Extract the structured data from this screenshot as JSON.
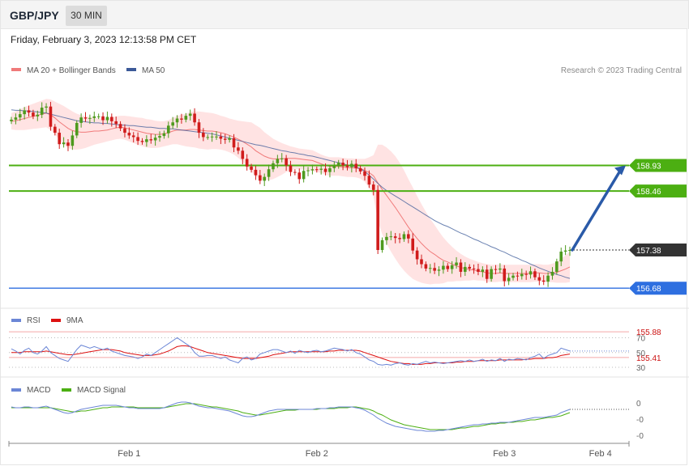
{
  "header": {
    "symbol": "GBP/JPY",
    "timeframe": "30 MIN"
  },
  "timestamp": "Friday, February 3, 2023 12:13:58 PM CET",
  "colors": {
    "bullish": "#4e9a1e",
    "bearish": "#d01c1c",
    "ma20": "#f07a7a",
    "bollinger_fill": "#ffdede",
    "ma50": "#3b5998",
    "resistance": "#4caf12",
    "support": "#2e6fe0",
    "extra_support": "#f4a7a7",
    "price_label": "#333333",
    "rsi": "#6b86d6",
    "rsi_ma": "#dd1111",
    "macd": "#6b86d6",
    "macd_signal": "#4caf12",
    "projection_arrow": "#2a5aa8"
  },
  "chart_data": [
    {
      "type": "candlestick",
      "panel": "price",
      "legend": [
        "MA 20 + Bollinger Bands",
        "MA 50"
      ],
      "copyright": "Research © 2023 Trading Central",
      "x_ticks": [
        "Feb 1",
        "Feb 2",
        "Feb 3",
        "Feb 4"
      ],
      "ylim": [
        154.9,
        160.5
      ],
      "close": [
        159.77,
        159.81,
        159.87,
        159.94,
        159.9,
        159.83,
        159.86,
        159.99,
        160.01,
        159.64,
        159.53,
        159.32,
        159.35,
        159.29,
        159.48,
        159.71,
        159.81,
        159.79,
        159.8,
        159.83,
        159.83,
        159.76,
        159.82,
        159.74,
        159.69,
        159.61,
        159.53,
        159.48,
        159.45,
        159.38,
        159.36,
        159.41,
        159.39,
        159.44,
        159.47,
        159.52,
        159.66,
        159.72,
        159.79,
        159.77,
        159.84,
        159.88,
        159.72,
        159.53,
        159.45,
        159.45,
        159.46,
        159.46,
        159.42,
        159.4,
        159.43,
        159.26,
        159.2,
        159.05,
        158.91,
        158.85,
        158.75,
        158.65,
        158.72,
        158.86,
        158.97,
        159.05,
        159.06,
        158.93,
        158.81,
        158.8,
        158.68,
        158.83,
        158.84,
        158.86,
        158.85,
        158.87,
        158.81,
        158.88,
        158.92,
        158.98,
        158.93,
        158.9,
        158.96,
        158.88,
        158.82,
        158.74,
        158.58,
        158.48,
        157.38,
        157.56,
        157.62,
        157.63,
        157.6,
        157.58,
        157.67,
        157.59,
        157.37,
        157.21,
        157.12,
        157.04,
        157.05,
        157.0,
        157.02,
        157.09,
        157.03,
        157.1,
        157.15,
        156.98,
        157.07,
        157.04,
        157.03,
        156.98,
        157.02,
        156.85,
        157.03,
        157.02,
        157.04,
        156.81,
        156.87,
        156.91,
        156.9,
        156.94,
        156.93,
        156.99,
        156.88,
        156.82,
        156.8,
        156.91,
        156.98,
        157.17,
        157.35,
        157.37,
        157.38
      ],
      "ma20": [
        159.74,
        159.75,
        159.77,
        159.79,
        159.81,
        159.83,
        159.85,
        159.87,
        159.89,
        159.86,
        159.8,
        159.73,
        159.67,
        159.61,
        159.57,
        159.55,
        159.54,
        159.54,
        159.55,
        159.56,
        159.56,
        159.57,
        159.58,
        159.6,
        159.62,
        159.63,
        159.62,
        159.6,
        159.58,
        159.56,
        159.54,
        159.52,
        159.51,
        159.5,
        159.5,
        159.51,
        159.53,
        159.56,
        159.58,
        159.58,
        159.58,
        159.59,
        159.59,
        159.58,
        159.57,
        159.56,
        159.56,
        159.55,
        159.53,
        159.51,
        159.48,
        159.45,
        159.41,
        159.37,
        159.32,
        159.27,
        159.2,
        159.15,
        159.1,
        159.07,
        159.05,
        159.05,
        159.05,
        159.06,
        159.06,
        159.06,
        159.05,
        159.04,
        159.03,
        159.02,
        158.99,
        158.96,
        158.93,
        158.91,
        158.91,
        158.91,
        158.9,
        158.89,
        158.89,
        158.88,
        158.87,
        158.84,
        158.8,
        158.74,
        158.61,
        158.49,
        158.38,
        158.27,
        158.16,
        158.04,
        157.92,
        157.8,
        157.69,
        157.59,
        157.5,
        157.42,
        157.35,
        157.3,
        157.24,
        157.19,
        157.16,
        157.12,
        157.09,
        157.06,
        157.04,
        157.02,
        157.01,
        156.99,
        156.98,
        156.96,
        156.95,
        156.95,
        156.96,
        156.95,
        156.95,
        156.95,
        156.95,
        156.95,
        156.95,
        156.95,
        156.96,
        156.96,
        156.95,
        156.95,
        156.96,
        156.97,
        157.0,
        157.03,
        157.07
      ],
      "ma50": [
        159.95,
        159.94,
        159.94,
        159.93,
        159.93,
        159.92,
        159.91,
        159.9,
        159.89,
        159.87,
        159.85,
        159.83,
        159.81,
        159.79,
        159.77,
        159.75,
        159.74,
        159.73,
        159.72,
        159.71,
        159.71,
        159.7,
        159.7,
        159.69,
        159.68,
        159.67,
        159.67,
        159.66,
        159.66,
        159.65,
        159.64,
        159.63,
        159.63,
        159.62,
        159.61,
        159.61,
        159.6,
        159.6,
        159.59,
        159.58,
        159.57,
        159.56,
        159.55,
        159.54,
        159.53,
        159.52,
        159.51,
        159.49,
        159.47,
        159.45,
        159.43,
        159.41,
        159.39,
        159.37,
        159.35,
        159.33,
        159.31,
        159.3,
        159.28,
        159.26,
        159.24,
        159.22,
        159.2,
        159.19,
        159.17,
        159.16,
        159.14,
        159.13,
        159.11,
        159.1,
        159.08,
        159.06,
        159.04,
        159.02,
        159.0,
        158.98,
        158.96,
        158.94,
        158.92,
        158.9,
        158.87,
        158.82,
        158.75,
        158.68,
        158.6,
        158.53,
        158.47,
        158.42,
        158.37,
        158.32,
        158.27,
        158.22,
        158.17,
        158.12,
        158.07,
        158.02,
        157.97,
        157.92,
        157.88,
        157.84,
        157.81,
        157.77,
        157.73,
        157.69,
        157.66,
        157.62,
        157.58,
        157.55,
        157.51,
        157.48,
        157.44,
        157.41,
        157.37,
        157.34,
        157.3,
        157.26,
        157.23,
        157.19,
        157.16,
        157.12,
        157.09,
        157.05,
        157.02,
        156.99,
        156.96,
        156.93,
        156.91,
        156.88,
        156.86
      ],
      "bb_width": [
        0.15,
        0.17,
        0.19,
        0.21,
        0.22,
        0.23,
        0.24,
        0.25,
        0.26,
        0.28,
        0.3,
        0.33,
        0.35,
        0.36,
        0.35,
        0.33,
        0.31,
        0.29,
        0.27,
        0.25,
        0.23,
        0.22,
        0.21,
        0.21,
        0.21,
        0.21,
        0.22,
        0.23,
        0.24,
        0.25,
        0.26,
        0.26,
        0.26,
        0.25,
        0.24,
        0.23,
        0.23,
        0.24,
        0.26,
        0.28,
        0.3,
        0.32,
        0.33,
        0.34,
        0.34,
        0.34,
        0.33,
        0.32,
        0.31,
        0.31,
        0.31,
        0.32,
        0.34,
        0.37,
        0.41,
        0.45,
        0.47,
        0.47,
        0.44,
        0.41,
        0.37,
        0.33,
        0.29,
        0.25,
        0.22,
        0.2,
        0.19,
        0.19,
        0.19,
        0.19,
        0.18,
        0.17,
        0.17,
        0.17,
        0.17,
        0.17,
        0.17,
        0.17,
        0.17,
        0.17,
        0.18,
        0.21,
        0.28,
        0.38,
        0.7,
        0.82,
        0.88,
        0.92,
        0.94,
        0.94,
        0.92,
        0.88,
        0.84,
        0.78,
        0.72,
        0.66,
        0.6,
        0.54,
        0.48,
        0.42,
        0.36,
        0.32,
        0.28,
        0.25,
        0.22,
        0.2,
        0.18,
        0.17,
        0.16,
        0.16,
        0.16,
        0.16,
        0.16,
        0.16,
        0.16,
        0.16,
        0.16,
        0.16,
        0.16,
        0.16,
        0.16,
        0.16,
        0.16,
        0.16,
        0.17,
        0.19,
        0.22,
        0.25,
        0.28
      ],
      "levels": [
        {
          "value": 158.93,
          "label": "158.93",
          "kind": "resistance"
        },
        {
          "value": 158.46,
          "label": "158.46",
          "kind": "resistance"
        },
        {
          "value": 157.38,
          "label": "157.38",
          "kind": "last"
        },
        {
          "value": 156.68,
          "label": "156.68",
          "kind": "support"
        },
        {
          "value": 155.88,
          "label": "155.88",
          "kind": "extra_support"
        },
        {
          "value": 155.41,
          "label": "155.41",
          "kind": "extra_support"
        }
      ],
      "projection": {
        "from": 157.38,
        "to": 158.93
      }
    },
    {
      "type": "line",
      "panel": "rsi",
      "legend": [
        "RSI",
        "9MA"
      ],
      "y_ticks": [
        "70",
        "50",
        "30"
      ],
      "ylim": [
        20,
        80
      ],
      "rsi": [
        55,
        52,
        48,
        53,
        56,
        50,
        48,
        52,
        58,
        50,
        46,
        42,
        40,
        38,
        46,
        54,
        60,
        58,
        56,
        58,
        56,
        54,
        56,
        52,
        50,
        48,
        46,
        45,
        44,
        42,
        44,
        48,
        46,
        50,
        54,
        58,
        62,
        66,
        70,
        66,
        62,
        58,
        50,
        45,
        45,
        46,
        46,
        44,
        42,
        44,
        40,
        38,
        36,
        42,
        44,
        40,
        42,
        48,
        50,
        52,
        54,
        54,
        52,
        50,
        52,
        49,
        53,
        51,
        50,
        52,
        53,
        51,
        52,
        54,
        56,
        55,
        54,
        52,
        54,
        50,
        48,
        44,
        40,
        38,
        34,
        33,
        34,
        33,
        35,
        36,
        34,
        33,
        35,
        34,
        36,
        38,
        36,
        37,
        36,
        35,
        36,
        37,
        38,
        39,
        38,
        40,
        38,
        39,
        41,
        38,
        40,
        39,
        42,
        38,
        41,
        40,
        42,
        41,
        40,
        43,
        45,
        48,
        42,
        46,
        48,
        50,
        56,
        54,
        52
      ],
      "rsi_ma": [
        50,
        50,
        50,
        51,
        51,
        51,
        51,
        51,
        52,
        51,
        50,
        49,
        48,
        47,
        47,
        48,
        49,
        50,
        51,
        52,
        53,
        54,
        54,
        54,
        53,
        52,
        50,
        49,
        48,
        47,
        46,
        46,
        46,
        47,
        48,
        50,
        52,
        55,
        58,
        59,
        59,
        58,
        56,
        54,
        52,
        50,
        49,
        48,
        47,
        46,
        45,
        44,
        43,
        42,
        42,
        42,
        42,
        43,
        44,
        45,
        47,
        48,
        49,
        50,
        51,
        51,
        51,
        51,
        51,
        51,
        51,
        51,
        51,
        52,
        52,
        53,
        53,
        53,
        53,
        53,
        52,
        50,
        48,
        46,
        44,
        42,
        40,
        38,
        37,
        36,
        35,
        35,
        34,
        34,
        34,
        35,
        35,
        36,
        36,
        36,
        36,
        36,
        37,
        37,
        38,
        38,
        38,
        39,
        39,
        39,
        39,
        39,
        40,
        40,
        40,
        40,
        40,
        40,
        41,
        41,
        42,
        42,
        42,
        43,
        43,
        44,
        46,
        47,
        48
      ]
    },
    {
      "type": "line",
      "panel": "macd",
      "legend": [
        "MACD",
        "MACD Signal"
      ],
      "y_ticks": [
        "0",
        "-0",
        "-0"
      ],
      "ylim": [
        -0.4,
        0.1
      ],
      "macd": [
        -0.05,
        -0.06,
        -0.06,
        -0.05,
        -0.05,
        -0.06,
        -0.06,
        -0.05,
        -0.04,
        -0.06,
        -0.08,
        -0.1,
        -0.12,
        -0.13,
        -0.12,
        -0.1,
        -0.08,
        -0.07,
        -0.06,
        -0.05,
        -0.04,
        -0.03,
        -0.03,
        -0.03,
        -0.03,
        -0.04,
        -0.05,
        -0.06,
        -0.06,
        -0.07,
        -0.07,
        -0.07,
        -0.07,
        -0.07,
        -0.07,
        -0.06,
        -0.04,
        -0.02,
        0.0,
        0.01,
        0.01,
        0.0,
        -0.02,
        -0.04,
        -0.05,
        -0.06,
        -0.06,
        -0.07,
        -0.08,
        -0.09,
        -0.1,
        -0.12,
        -0.14,
        -0.16,
        -0.17,
        -0.17,
        -0.16,
        -0.14,
        -0.12,
        -0.1,
        -0.09,
        -0.08,
        -0.08,
        -0.08,
        -0.08,
        -0.08,
        -0.08,
        -0.08,
        -0.08,
        -0.08,
        -0.07,
        -0.07,
        -0.07,
        -0.06,
        -0.06,
        -0.05,
        -0.05,
        -0.05,
        -0.05,
        -0.06,
        -0.07,
        -0.09,
        -0.12,
        -0.15,
        -0.19,
        -0.22,
        -0.25,
        -0.27,
        -0.29,
        -0.3,
        -0.31,
        -0.32,
        -0.33,
        -0.34,
        -0.34,
        -0.35,
        -0.35,
        -0.35,
        -0.34,
        -0.34,
        -0.33,
        -0.32,
        -0.31,
        -0.3,
        -0.29,
        -0.28,
        -0.27,
        -0.27,
        -0.26,
        -0.26,
        -0.25,
        -0.25,
        -0.24,
        -0.24,
        -0.24,
        -0.23,
        -0.22,
        -0.21,
        -0.2,
        -0.19,
        -0.18,
        -0.18,
        -0.18,
        -0.17,
        -0.16,
        -0.15,
        -0.12,
        -0.1,
        -0.08
      ],
      "signal": [
        -0.06,
        -0.06,
        -0.06,
        -0.06,
        -0.06,
        -0.06,
        -0.06,
        -0.06,
        -0.06,
        -0.06,
        -0.07,
        -0.08,
        -0.09,
        -0.1,
        -0.11,
        -0.11,
        -0.1,
        -0.1,
        -0.09,
        -0.08,
        -0.07,
        -0.06,
        -0.06,
        -0.05,
        -0.05,
        -0.05,
        -0.05,
        -0.05,
        -0.05,
        -0.06,
        -0.06,
        -0.06,
        -0.06,
        -0.06,
        -0.06,
        -0.06,
        -0.05,
        -0.04,
        -0.03,
        -0.02,
        -0.01,
        -0.01,
        -0.01,
        -0.02,
        -0.03,
        -0.04,
        -0.05,
        -0.05,
        -0.06,
        -0.07,
        -0.08,
        -0.09,
        -0.1,
        -0.12,
        -0.13,
        -0.14,
        -0.15,
        -0.15,
        -0.14,
        -0.13,
        -0.12,
        -0.11,
        -0.1,
        -0.09,
        -0.09,
        -0.09,
        -0.08,
        -0.08,
        -0.08,
        -0.08,
        -0.08,
        -0.07,
        -0.07,
        -0.07,
        -0.07,
        -0.06,
        -0.06,
        -0.06,
        -0.05,
        -0.05,
        -0.06,
        -0.07,
        -0.08,
        -0.1,
        -0.13,
        -0.15,
        -0.18,
        -0.21,
        -0.23,
        -0.25,
        -0.27,
        -0.28,
        -0.29,
        -0.3,
        -0.31,
        -0.32,
        -0.33,
        -0.33,
        -0.33,
        -0.33,
        -0.33,
        -0.33,
        -0.32,
        -0.31,
        -0.31,
        -0.3,
        -0.29,
        -0.29,
        -0.28,
        -0.27,
        -0.26,
        -0.26,
        -0.25,
        -0.25,
        -0.24,
        -0.24,
        -0.23,
        -0.23,
        -0.22,
        -0.21,
        -0.21,
        -0.2,
        -0.19,
        -0.18,
        -0.18,
        -0.17,
        -0.16,
        -0.14,
        -0.12
      ]
    }
  ]
}
